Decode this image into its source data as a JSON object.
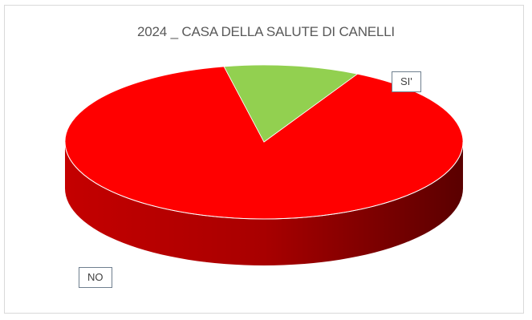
{
  "chart_data": {
    "type": "pie",
    "title": "2024 _ CASA DELLA SALUTE DI CANELLI",
    "categories": [
      "NO",
      "SI'"
    ],
    "values": [
      89,
      11
    ],
    "colors": [
      "#ff0000",
      "#92d050"
    ],
    "side_colors": [
      "#9e0000",
      "#5c8f2a"
    ],
    "data_labels": [
      "NO",
      "SI'"
    ],
    "legend": "none",
    "style": "3d"
  }
}
